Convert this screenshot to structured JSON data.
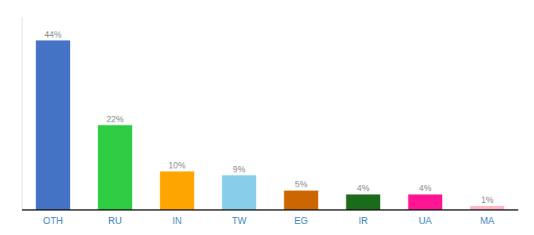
{
  "chart_data": {
    "type": "bar",
    "categories": [
      "OTH",
      "RU",
      "IN",
      "TW",
      "EG",
      "IR",
      "UA",
      "MA"
    ],
    "values": [
      44,
      22,
      10,
      9,
      5,
      4,
      4,
      1
    ],
    "value_labels": [
      "44%",
      "22%",
      "10%",
      "9%",
      "5%",
      "4%",
      "4%",
      "1%"
    ],
    "colors": [
      "#4472C4",
      "#2ECC40",
      "#FFA500",
      "#87CEEB",
      "#CC6600",
      "#1A6B1A",
      "#FF1493",
      "#FFB6C1"
    ],
    "ylim": [
      0,
      50
    ],
    "data_labels": true,
    "grid": false,
    "tick_labels": "x"
  }
}
